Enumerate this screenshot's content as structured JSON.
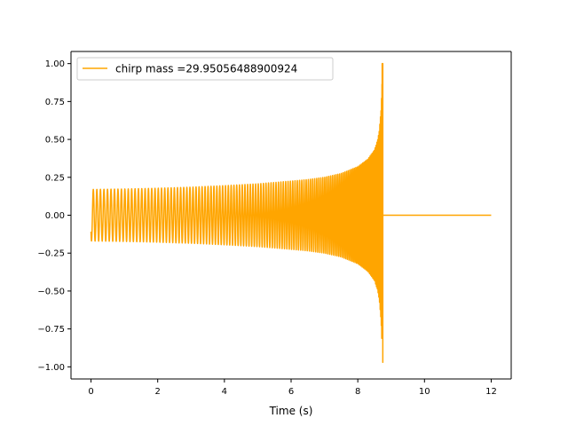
{
  "chart_data": {
    "type": "line",
    "title": "",
    "xlabel": "Time (s)",
    "ylabel": "",
    "xlim": [
      -0.6,
      12.6
    ],
    "ylim": [
      -1.08,
      1.08
    ],
    "x_ticks": [
      0,
      2,
      4,
      6,
      8,
      10,
      12
    ],
    "y_ticks": [
      -1.0,
      -0.75,
      -0.5,
      -0.25,
      0.0,
      0.25,
      0.5,
      0.75,
      1.0
    ],
    "x_tick_labels": [
      "0",
      "2",
      "4",
      "6",
      "8",
      "10",
      "12"
    ],
    "y_tick_labels": [
      "−1.00",
      "−0.75",
      "−0.50",
      "−0.25",
      "0.00",
      "0.25",
      "0.50",
      "0.75",
      "1.00"
    ],
    "grid": false,
    "legend_position": "upper-left",
    "colors": {
      "series": "#ffa500",
      "axes": "#000000",
      "background": "#ffffff"
    },
    "series": [
      {
        "name": "chirp mass =29.95056488900924",
        "color": "#ffa500",
        "envelope": {
          "t": [
            0,
            1,
            2,
            3,
            4,
            5,
            6,
            6.5,
            7,
            7.5,
            8,
            8.3,
            8.5,
            8.6,
            8.65,
            8.7,
            8.73,
            8.75
          ],
          "amplitude": [
            0.17,
            0.173,
            0.178,
            0.185,
            0.195,
            0.207,
            0.225,
            0.235,
            0.25,
            0.275,
            0.32,
            0.37,
            0.43,
            0.5,
            0.57,
            0.7,
            0.9,
            1.0
          ]
        },
        "start_time": 0.0,
        "merger_time": 8.75,
        "end_time": 12.0,
        "visible_cycles": 130,
        "peak": 1.0,
        "trough": -0.97,
        "post_merger_value": 0.0
      }
    ]
  }
}
